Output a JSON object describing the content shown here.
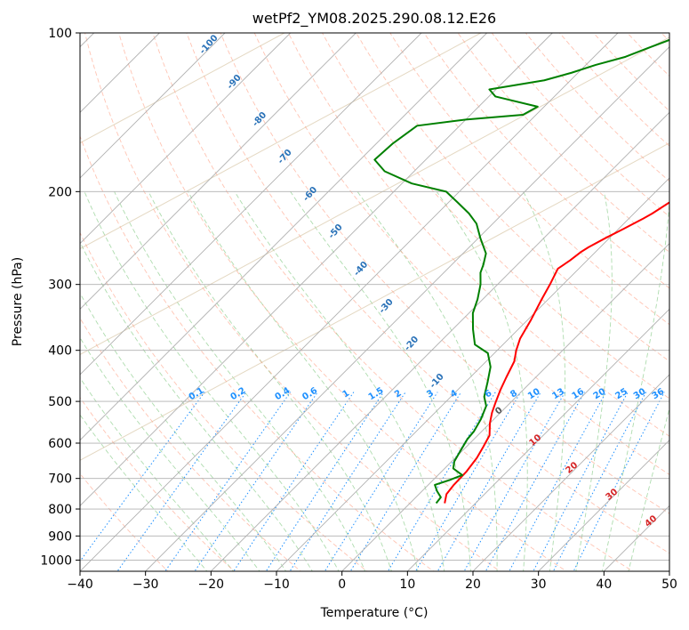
{
  "chart_data": {
    "type": "line",
    "title": "wetPf2_YM08.2025.290.08.12.E26",
    "xlabel": "Temperature (°C)",
    "ylabel": "Pressure (hPa)",
    "xlim": [
      -40,
      50
    ],
    "ylim": [
      1050,
      100
    ],
    "y_scale": "log",
    "skew": "45 degrees",
    "grid": true,
    "x_ticks": [
      -40,
      -30,
      -20,
      -10,
      0,
      10,
      20,
      30,
      40,
      50
    ],
    "y_ticks": [
      100,
      200,
      300,
      400,
      500,
      600,
      700,
      800,
      900,
      1000
    ],
    "series": [
      {
        "color": "#ff0000",
        "points": [
          [
            5.3,
            780
          ],
          [
            4.2,
            750
          ],
          [
            3.9,
            720
          ],
          [
            3.8,
            680
          ],
          [
            3.3,
            640
          ],
          [
            2.6,
            610
          ],
          [
            1.8,
            580
          ],
          [
            0,
            550
          ],
          [
            -1.3,
            525
          ],
          [
            -2.4,
            500
          ],
          [
            -3.5,
            475
          ],
          [
            -4.5,
            450
          ],
          [
            -5.7,
            420
          ],
          [
            -7.1,
            400
          ],
          [
            -8.3,
            380
          ],
          [
            -9.5,
            350
          ],
          [
            -11,
            320
          ],
          [
            -12,
            300
          ],
          [
            -13.2,
            280
          ],
          [
            -12.6,
            270
          ],
          [
            -12.2,
            260
          ],
          [
            -11.8,
            255
          ],
          [
            -10.6,
            245
          ],
          [
            -9.2,
            235
          ],
          [
            -7.8,
            225
          ],
          [
            -7.2,
            220
          ],
          [
            -6.3,
            210
          ],
          [
            -5.5,
            200
          ],
          [
            -4.6,
            190
          ],
          [
            -4.1,
            180
          ],
          [
            -3.8,
            170
          ],
          [
            -3.5,
            160
          ],
          [
            -2.2,
            150
          ],
          [
            -1.1,
            140
          ],
          [
            0.8,
            130
          ],
          [
            2.4,
            125
          ],
          [
            3.8,
            120
          ],
          [
            4.4,
            115
          ],
          [
            5.5,
            110
          ],
          [
            7.0,
            105
          ],
          [
            8.5,
            100
          ]
        ]
      },
      {
        "color": "#008000",
        "points": [
          [
            4.0,
            780
          ],
          [
            3.8,
            760
          ],
          [
            2.3,
            740
          ],
          [
            1.0,
            720
          ],
          [
            2.5,
            705
          ],
          [
            3.7,
            690
          ],
          [
            1.3,
            670
          ],
          [
            0.4,
            650
          ],
          [
            -0.3,
            620
          ],
          [
            -1.0,
            590
          ],
          [
            -1.2,
            570
          ],
          [
            -2.0,
            540
          ],
          [
            -3.2,
            510
          ],
          [
            -4.9,
            490
          ],
          [
            -6.6,
            460
          ],
          [
            -8.5,
            430
          ],
          [
            -11,
            405
          ],
          [
            -14.3,
            390
          ],
          [
            -16.9,
            365
          ],
          [
            -19.4,
            340
          ],
          [
            -20.8,
            320
          ],
          [
            -22.6,
            300
          ],
          [
            -24.4,
            285
          ],
          [
            -25.2,
            275
          ],
          [
            -26.5,
            262
          ],
          [
            -29.7,
            245
          ],
          [
            -32.5,
            230
          ],
          [
            -35.2,
            220
          ],
          [
            -38.5,
            210
          ],
          [
            -42,
            200
          ],
          [
            -48.5,
            193
          ],
          [
            -54.5,
            183
          ],
          [
            -57.8,
            174
          ],
          [
            -57.5,
            162
          ],
          [
            -56.5,
            150
          ],
          [
            -50,
            146
          ],
          [
            -42,
            143
          ],
          [
            -41,
            138
          ],
          [
            -49,
            132
          ],
          [
            -51,
            128
          ],
          [
            -44,
            123
          ],
          [
            -41,
            119
          ],
          [
            -38.5,
            115
          ],
          [
            -35.2,
            111
          ],
          [
            -33.2,
            107
          ],
          [
            -31,
            103
          ],
          [
            -29.6,
            100
          ]
        ]
      }
    ],
    "dry_adiabat_labels": [
      "-100",
      "-90",
      "-80",
      "-70",
      "-60",
      "-50",
      "-40",
      "-30",
      "-20",
      "-10"
    ],
    "mixing_ratio_labels": [
      "0.1",
      "0.2",
      "0.4",
      "0.6",
      "1",
      "1.5",
      "2",
      "3",
      "4",
      "6",
      "8",
      "10",
      "13",
      "16",
      "20",
      "25",
      "30",
      "36"
    ],
    "moist_adiabat_labels": [
      "0",
      "10",
      "20",
      "30",
      "40"
    ]
  }
}
